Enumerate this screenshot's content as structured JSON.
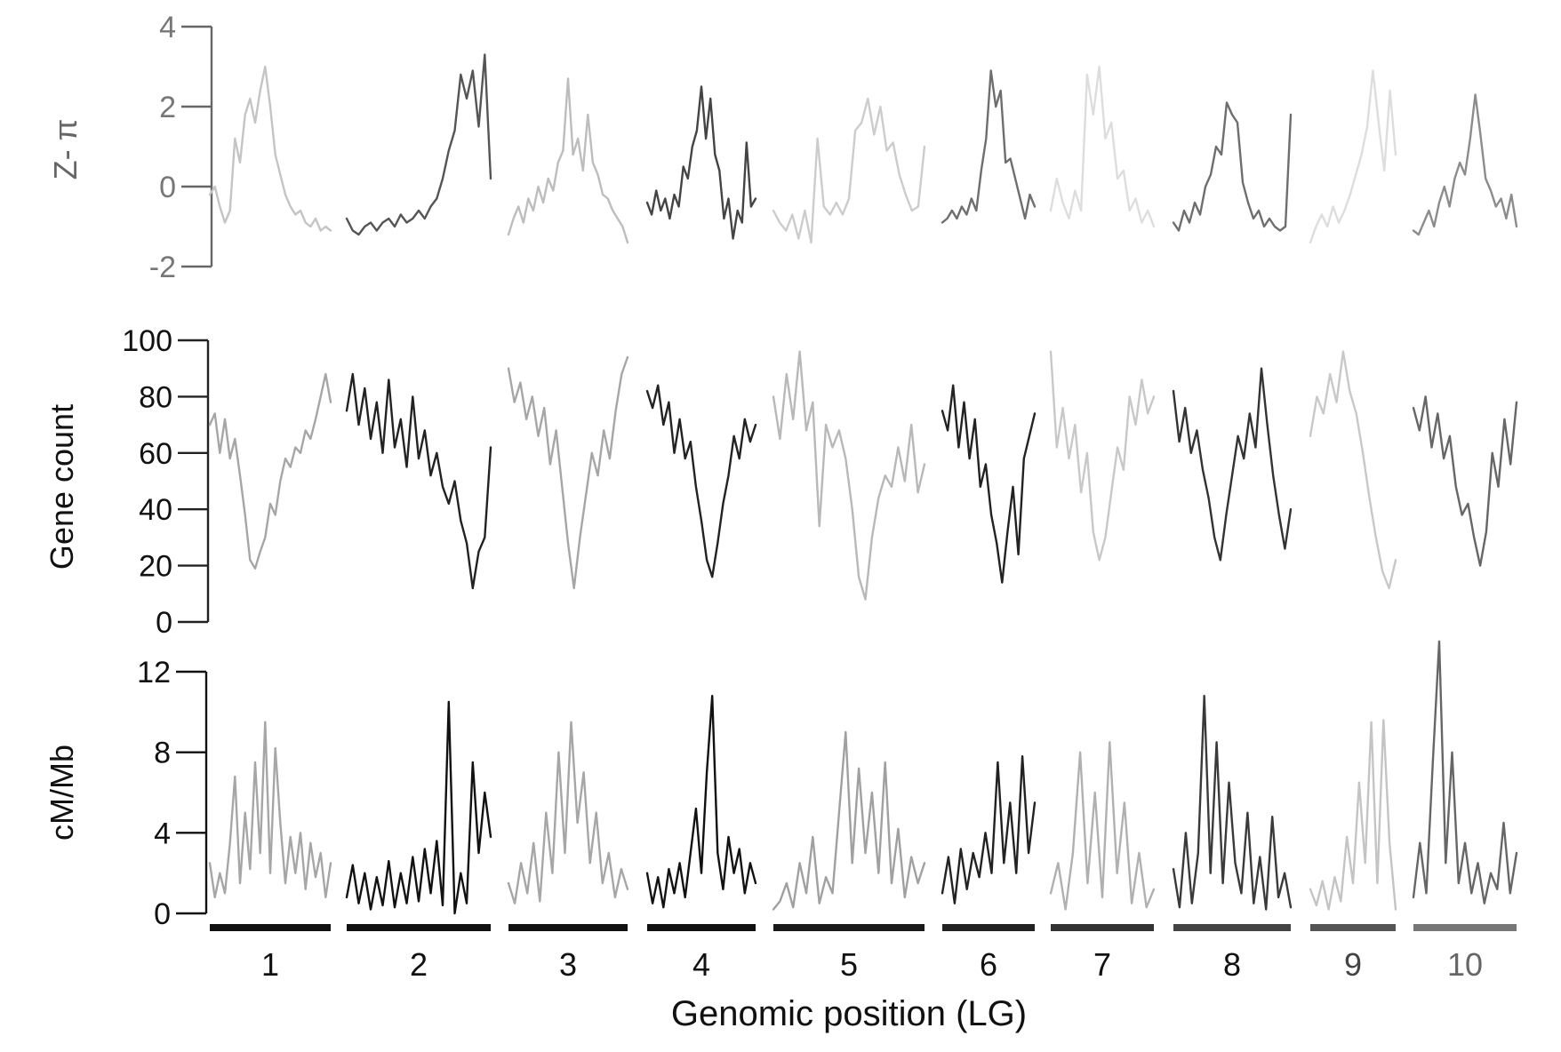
{
  "figure": {
    "xlabel": "Genomic position (LG)"
  },
  "chart_data": [
    {
      "type": "line",
      "ylabel": "Z- π",
      "ylim": [
        -2,
        4
      ],
      "yticks": [
        "-2",
        "0",
        "2",
        "4"
      ],
      "series": [
        {
          "lg": "1",
          "color": "#c4c4c4",
          "values": [
            -0.2,
            0.0,
            -0.5,
            -0.9,
            -0.6,
            1.2,
            0.6,
            1.8,
            2.2,
            1.6,
            2.4,
            3.0,
            2.0,
            0.8,
            0.3,
            -0.2,
            -0.5,
            -0.7,
            -0.6,
            -0.9,
            -1.0,
            -0.8,
            -1.1,
            -1.0,
            -1.1
          ]
        },
        {
          "lg": "2",
          "color": "#555555",
          "values": [
            -0.8,
            -1.1,
            -1.2,
            -1.0,
            -0.9,
            -1.1,
            -0.9,
            -0.8,
            -1.0,
            -0.7,
            -0.9,
            -0.8,
            -0.6,
            -0.8,
            -0.5,
            -0.3,
            0.2,
            0.9,
            1.4,
            2.8,
            2.2,
            2.9,
            1.5,
            3.3,
            0.2
          ]
        },
        {
          "lg": "3",
          "color": "#bdbdbd",
          "values": [
            -1.2,
            -0.8,
            -0.5,
            -0.9,
            -0.3,
            -0.6,
            0.0,
            -0.4,
            0.2,
            -0.1,
            0.6,
            0.9,
            2.7,
            0.8,
            1.2,
            0.4,
            1.8,
            0.6,
            0.3,
            -0.2,
            -0.3,
            -0.6,
            -0.8,
            -1.0,
            -1.4
          ]
        },
        {
          "lg": "4",
          "color": "#444444",
          "values": [
            -0.4,
            -0.7,
            -0.1,
            -0.6,
            -0.3,
            -0.8,
            -0.2,
            -0.5,
            0.5,
            0.2,
            1.0,
            1.4,
            2.5,
            1.2,
            2.2,
            0.8,
            0.4,
            -0.8,
            -0.3,
            -1.3,
            -0.6,
            -0.9,
            1.1,
            -0.5,
            -0.3
          ]
        },
        {
          "lg": "5",
          "color": "#cccccc",
          "values": [
            -0.6,
            -0.9,
            -1.1,
            -0.7,
            -1.3,
            -0.6,
            -1.4,
            1.2,
            -0.5,
            -0.7,
            -0.4,
            -0.7,
            -0.3,
            1.4,
            1.6,
            2.2,
            1.3,
            2.0,
            0.9,
            1.1,
            0.3,
            -0.2,
            -0.6,
            -0.5,
            1.0
          ]
        },
        {
          "lg": "6",
          "color": "#6e6e6e",
          "values": [
            -0.9,
            -0.8,
            -0.6,
            -0.8,
            -0.5,
            -0.7,
            -0.3,
            -0.6,
            0.4,
            1.2,
            2.9,
            2.0,
            2.4,
            0.6,
            0.7,
            0.2,
            -0.3,
            -0.8,
            -0.2,
            -0.5
          ]
        },
        {
          "lg": "7",
          "color": "#dddddd",
          "values": [
            -0.6,
            0.2,
            -0.4,
            -0.8,
            -0.1,
            -0.6,
            2.8,
            1.8,
            3.0,
            1.2,
            1.6,
            0.2,
            0.4,
            -0.6,
            -0.3,
            -0.9,
            -0.6,
            -1.0
          ]
        },
        {
          "lg": "8",
          "color": "#6e6e6e",
          "values": [
            -0.9,
            -1.1,
            -0.6,
            -0.9,
            -0.4,
            -0.7,
            0.0,
            0.3,
            1.0,
            0.8,
            2.1,
            1.8,
            1.6,
            0.1,
            -0.4,
            -0.8,
            -0.6,
            -1.0,
            -0.8,
            -1.0,
            -1.1,
            -1.0,
            1.8
          ]
        },
        {
          "lg": "9",
          "color": "#dddddd",
          "values": [
            -1.4,
            -1.0,
            -0.7,
            -1.0,
            -0.5,
            -0.9,
            -0.6,
            -0.2,
            0.3,
            0.8,
            1.5,
            2.9,
            1.6,
            0.4,
            2.4,
            0.8
          ]
        },
        {
          "lg": "10",
          "color": "#8c8c8c",
          "values": [
            -1.1,
            -1.2,
            -0.9,
            -0.6,
            -1.0,
            -0.4,
            0.0,
            -0.5,
            0.2,
            0.6,
            0.3,
            1.2,
            2.3,
            1.3,
            0.2,
            -0.1,
            -0.5,
            -0.3,
            -0.8,
            -0.2,
            -1.0
          ]
        }
      ]
    },
    {
      "type": "line",
      "ylabel": "Gene count",
      "ylim": [
        0,
        100
      ],
      "yticks": [
        "0",
        "20",
        "40",
        "60",
        "80",
        "100"
      ],
      "series": [
        {
          "lg": "1",
          "color": "#a6a6a6",
          "values": [
            70,
            74,
            60,
            72,
            58,
            65,
            52,
            38,
            22,
            19,
            25,
            30,
            42,
            38,
            50,
            58,
            55,
            62,
            60,
            68,
            65,
            72,
            80,
            88,
            78
          ]
        },
        {
          "lg": "2",
          "color": "#222222",
          "values": [
            75,
            88,
            70,
            83,
            65,
            78,
            60,
            86,
            62,
            72,
            55,
            80,
            58,
            68,
            52,
            60,
            48,
            42,
            50,
            36,
            28,
            12,
            25,
            30,
            62
          ]
        },
        {
          "lg": "3",
          "color": "#a6a6a6",
          "values": [
            90,
            78,
            85,
            72,
            80,
            66,
            76,
            56,
            68,
            48,
            28,
            12,
            30,
            45,
            60,
            52,
            68,
            58,
            75,
            88,
            94
          ]
        },
        {
          "lg": "4",
          "color": "#222222",
          "values": [
            82,
            76,
            84,
            70,
            78,
            60,
            72,
            58,
            64,
            48,
            36,
            22,
            16,
            28,
            42,
            52,
            66,
            58,
            72,
            64,
            70
          ]
        },
        {
          "lg": "5",
          "color": "#b8b8b8",
          "values": [
            80,
            65,
            88,
            72,
            96,
            68,
            78,
            34,
            70,
            62,
            68,
            58,
            40,
            16,
            8,
            30,
            44,
            52,
            48,
            62,
            50,
            70,
            46,
            56
          ]
        },
        {
          "lg": "6",
          "color": "#222222",
          "values": [
            75,
            68,
            84,
            62,
            78,
            58,
            72,
            48,
            56,
            38,
            28,
            14,
            32,
            48,
            24,
            58,
            66,
            74
          ]
        },
        {
          "lg": "7",
          "color": "#c8c8c8",
          "values": [
            96,
            62,
            76,
            58,
            70,
            46,
            60,
            32,
            22,
            30,
            46,
            62,
            54,
            80,
            70,
            86,
            74,
            80
          ]
        },
        {
          "lg": "8",
          "color": "#333333",
          "values": [
            82,
            64,
            76,
            60,
            68,
            54,
            44,
            30,
            22,
            38,
            52,
            66,
            58,
            74,
            62,
            90,
            70,
            52,
            38,
            26,
            40
          ]
        },
        {
          "lg": "9",
          "color": "#c8c8c8",
          "values": [
            66,
            80,
            74,
            88,
            78,
            96,
            82,
            74,
            60,
            44,
            30,
            18,
            12,
            22
          ]
        },
        {
          "lg": "10",
          "color": "#666666",
          "values": [
            76,
            68,
            80,
            62,
            74,
            58,
            66,
            48,
            38,
            42,
            30,
            20,
            32,
            60,
            48,
            72,
            56,
            78
          ]
        }
      ]
    },
    {
      "type": "line",
      "ylabel": "cM/Mb",
      "ylim": [
        0,
        12
      ],
      "yticks": [
        "0",
        "4",
        "8",
        "12"
      ],
      "series": [
        {
          "lg": "1",
          "color": "#a6a6a6",
          "values": [
            2.5,
            0.8,
            2.0,
            1.0,
            3.5,
            6.8,
            1.5,
            5.0,
            2.2,
            7.5,
            3.0,
            9.5,
            2.0,
            8.2,
            4.5,
            1.5,
            3.8,
            2.0,
            4.0,
            1.2,
            3.5,
            1.8,
            3.0,
            0.8,
            2.5
          ]
        },
        {
          "lg": "2",
          "color": "#111111",
          "values": [
            0.8,
            2.4,
            0.5,
            2.0,
            0.2,
            1.8,
            0.4,
            2.6,
            0.3,
            2.0,
            0.5,
            2.8,
            0.6,
            3.2,
            1.0,
            3.6,
            0.4,
            10.5,
            0.0,
            2.0,
            0.5,
            7.5,
            3.0,
            6.0,
            3.8
          ]
        },
        {
          "lg": "3",
          "color": "#a6a6a6",
          "values": [
            1.5,
            0.5,
            2.5,
            1.0,
            3.5,
            0.6,
            5.0,
            2.0,
            8.0,
            3.0,
            9.5,
            4.5,
            7.0,
            2.5,
            5.0,
            1.5,
            3.0,
            0.8,
            2.2,
            1.2
          ]
        },
        {
          "lg": "4",
          "color": "#111111",
          "values": [
            2.0,
            0.5,
            1.8,
            0.3,
            2.2,
            1.0,
            2.5,
            0.8,
            3.0,
            5.2,
            2.0,
            7.0,
            10.8,
            3.0,
            1.2,
            3.8,
            2.0,
            3.2,
            1.0,
            2.5,
            1.5
          ]
        },
        {
          "lg": "5",
          "color": "#a0a0a0",
          "values": [
            0.2,
            0.6,
            1.5,
            0.3,
            2.5,
            1.0,
            3.8,
            0.5,
            1.8,
            1.0,
            5.0,
            9.0,
            2.5,
            7.2,
            3.0,
            6.0,
            2.0,
            7.5,
            1.5,
            4.2,
            0.8,
            2.8,
            1.5,
            2.5
          ]
        },
        {
          "lg": "6",
          "color": "#222222",
          "values": [
            1.0,
            2.8,
            0.5,
            3.2,
            1.2,
            3.0,
            1.8,
            4.0,
            2.0,
            7.5,
            2.5,
            5.5,
            2.0,
            7.8,
            3.0,
            5.5
          ]
        },
        {
          "lg": "7",
          "color": "#b0b0b0",
          "values": [
            1.0,
            2.5,
            0.2,
            3.0,
            8.0,
            1.5,
            6.0,
            0.8,
            8.5,
            2.0,
            5.5,
            0.5,
            3.0,
            0.3,
            1.2
          ]
        },
        {
          "lg": "8",
          "color": "#3a3a3a",
          "values": [
            2.2,
            0.3,
            4.0,
            0.5,
            3.0,
            10.8,
            2.0,
            8.5,
            1.5,
            6.5,
            2.5,
            1.0,
            5.0,
            0.5,
            2.8,
            0.2,
            4.8,
            0.8,
            2.0,
            0.3
          ]
        },
        {
          "lg": "9",
          "color": "#c4c4c4",
          "values": [
            1.2,
            0.4,
            1.6,
            0.2,
            1.8,
            0.6,
            3.8,
            1.5,
            6.5,
            2.5,
            9.5,
            1.5,
            9.6,
            3.5,
            0.2
          ]
        },
        {
          "lg": "10",
          "color": "#666666",
          "values": [
            0.8,
            3.5,
            1.0,
            7.5,
            13.5,
            2.5,
            8.0,
            1.5,
            3.5,
            1.0,
            2.5,
            0.5,
            2.0,
            1.2,
            4.5,
            1.0,
            3.0
          ]
        }
      ]
    }
  ],
  "linkage_groups": [
    {
      "label": "1",
      "bar_color": "#111111"
    },
    {
      "label": "2",
      "bar_color": "#111111"
    },
    {
      "label": "3",
      "bar_color": "#111111"
    },
    {
      "label": "4",
      "bar_color": "#111111"
    },
    {
      "label": "5",
      "bar_color": "#1a1a1a"
    },
    {
      "label": "6",
      "bar_color": "#222222"
    },
    {
      "label": "7",
      "bar_color": "#333333"
    },
    {
      "label": "8",
      "bar_color": "#444444"
    },
    {
      "label": "9",
      "bar_color": "#555555"
    },
    {
      "label": "10",
      "bar_color": "#777777"
    }
  ]
}
